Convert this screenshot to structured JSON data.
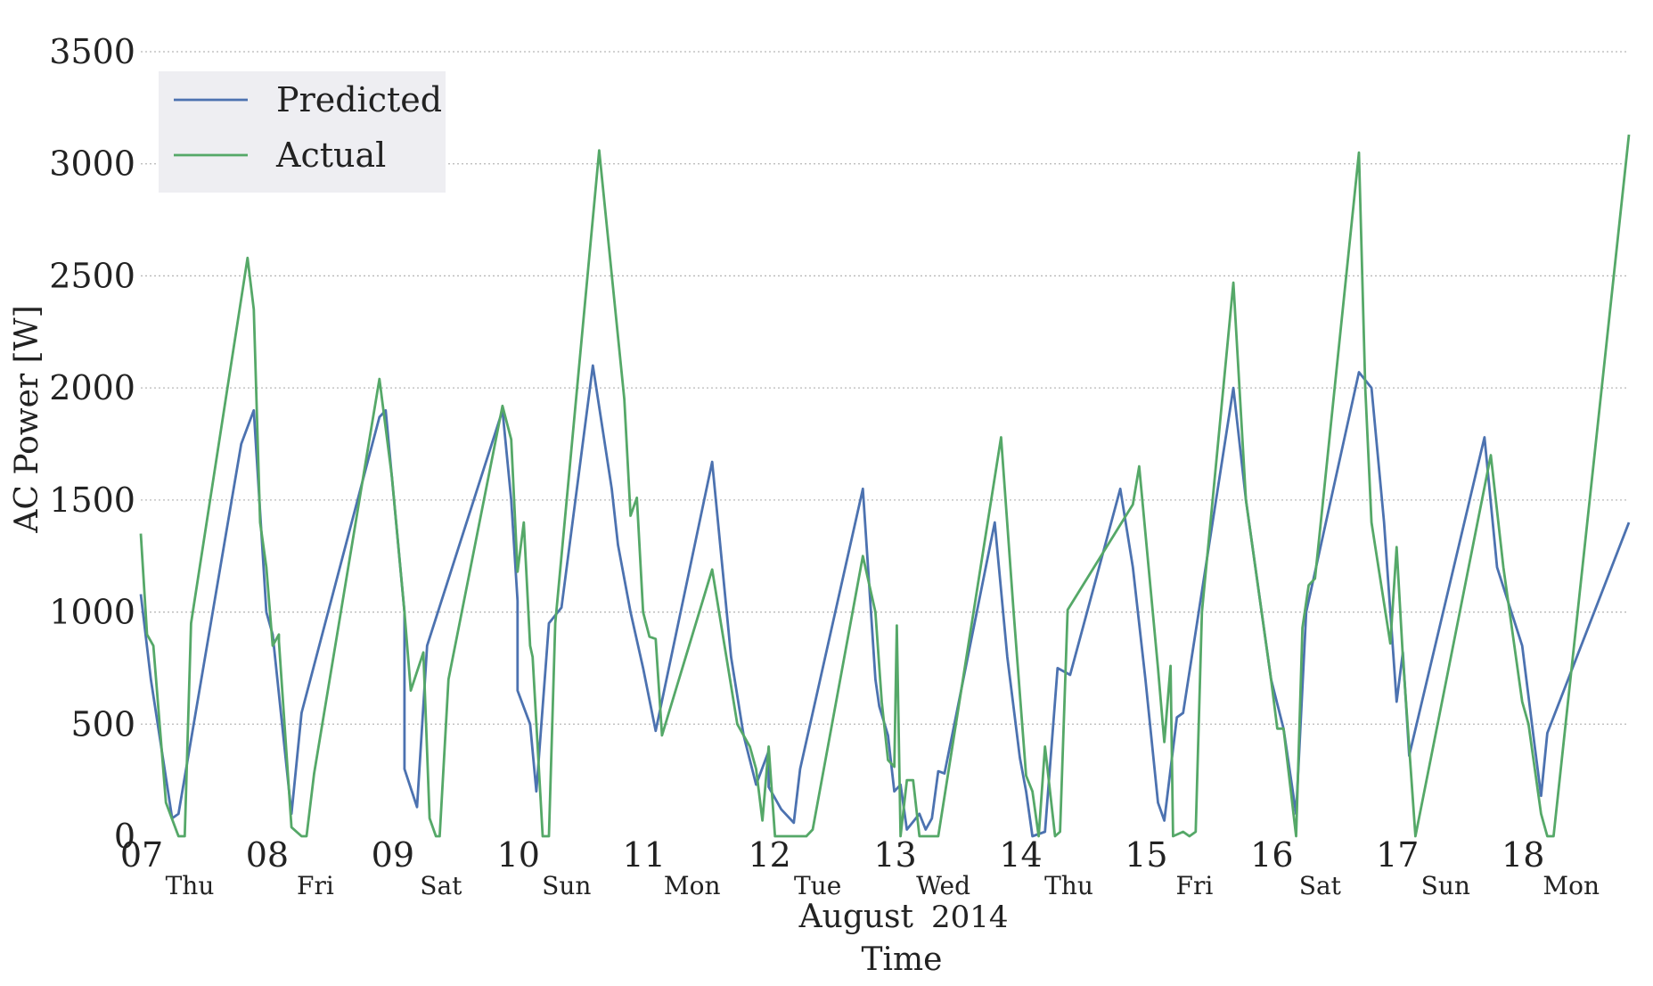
{
  "colors": {
    "predicted": "#4C72B0",
    "actual": "#55A868",
    "legend_bg": "#EEEEF2",
    "grid": "#B8B8B8"
  },
  "chart_data": {
    "type": "line",
    "ylabel": "AC Power [W]",
    "xlabel": "Time",
    "xlabel_month": "August",
    "xlabel_year": "2014",
    "ylim": [
      0,
      3500
    ],
    "yticks": [
      0,
      500,
      1000,
      1500,
      2000,
      2500,
      3000,
      3500
    ],
    "xlim": [
      7.0,
      18.85
    ],
    "day_ticks": [
      {
        "x": 7,
        "date": "07",
        "weekday": "Thu"
      },
      {
        "x": 8,
        "date": "08",
        "weekday": "Fri"
      },
      {
        "x": 9,
        "date": "09",
        "weekday": "Sat"
      },
      {
        "x": 10,
        "date": "10",
        "weekday": "Sun"
      },
      {
        "x": 11,
        "date": "11",
        "weekday": "Mon"
      },
      {
        "x": 12,
        "date": "12",
        "weekday": "Tue"
      },
      {
        "x": 13,
        "date": "13",
        "weekday": "Wed"
      },
      {
        "x": 14,
        "date": "14",
        "weekday": "Thu"
      },
      {
        "x": 15,
        "date": "15",
        "weekday": "Fri"
      },
      {
        "x": 16,
        "date": "16",
        "weekday": "Sat"
      },
      {
        "x": 17,
        "date": "17",
        "weekday": "Sun"
      },
      {
        "x": 18,
        "date": "18",
        "weekday": "Mon"
      }
    ],
    "grid": "horizontal dotted",
    "legend_position": "top-left",
    "series": [
      {
        "name": "Predicted",
        "color": "#4C72B0",
        "points": [
          [
            7.0,
            1080
          ],
          [
            7.08,
            700
          ],
          [
            7.25,
            80
          ],
          [
            7.3,
            100
          ],
          [
            7.8,
            1750
          ],
          [
            7.9,
            1900
          ],
          [
            8.0,
            1000
          ],
          [
            8.05,
            900
          ],
          [
            8.2,
            100
          ],
          [
            8.28,
            550
          ],
          [
            8.9,
            1870
          ],
          [
            8.95,
            1900
          ],
          [
            9.1,
            1000
          ],
          [
            9.1,
            300
          ],
          [
            9.2,
            130
          ],
          [
            9.28,
            850
          ],
          [
            9.88,
            1900
          ],
          [
            9.95,
            1500
          ],
          [
            10.0,
            1050
          ],
          [
            10.0,
            650
          ],
          [
            10.1,
            500
          ],
          [
            10.15,
            200
          ],
          [
            10.25,
            950
          ],
          [
            10.35,
            1020
          ],
          [
            10.6,
            2100
          ],
          [
            10.75,
            1550
          ],
          [
            10.8,
            1300
          ],
          [
            10.9,
            1000
          ],
          [
            11.0,
            750
          ],
          [
            11.1,
            470
          ],
          [
            11.55,
            1670
          ],
          [
            11.7,
            800
          ],
          [
            11.8,
            450
          ],
          [
            11.9,
            230
          ],
          [
            12.0,
            380
          ],
          [
            12.0,
            220
          ],
          [
            12.1,
            120
          ],
          [
            12.2,
            60
          ],
          [
            12.25,
            300
          ],
          [
            12.75,
            1550
          ],
          [
            12.85,
            700
          ],
          [
            12.88,
            580
          ],
          [
            12.95,
            450
          ],
          [
            13.0,
            200
          ],
          [
            13.05,
            230
          ],
          [
            13.1,
            30
          ],
          [
            13.2,
            100
          ],
          [
            13.25,
            30
          ],
          [
            13.3,
            80
          ],
          [
            13.35,
            290
          ],
          [
            13.4,
            280
          ],
          [
            13.8,
            1400
          ],
          [
            13.9,
            800
          ],
          [
            14.0,
            350
          ],
          [
            14.05,
            200
          ],
          [
            14.1,
            0
          ],
          [
            14.2,
            20
          ],
          [
            14.3,
            750
          ],
          [
            14.4,
            720
          ],
          [
            14.8,
            1550
          ],
          [
            14.9,
            1200
          ],
          [
            15.0,
            700
          ],
          [
            15.1,
            150
          ],
          [
            15.15,
            70
          ],
          [
            15.25,
            530
          ],
          [
            15.3,
            550
          ],
          [
            15.7,
            2000
          ],
          [
            15.8,
            1500
          ],
          [
            16.0,
            700
          ],
          [
            16.1,
            480
          ],
          [
            16.2,
            100
          ],
          [
            16.28,
            1000
          ],
          [
            16.7,
            2070
          ],
          [
            16.8,
            2000
          ],
          [
            16.9,
            1400
          ],
          [
            17.0,
            600
          ],
          [
            17.05,
            820
          ],
          [
            17.1,
            360
          ],
          [
            17.7,
            1780
          ],
          [
            17.8,
            1200
          ],
          [
            18.0,
            850
          ],
          [
            18.1,
            400
          ],
          [
            18.15,
            180
          ],
          [
            18.2,
            460
          ],
          [
            18.85,
            1400
          ]
        ]
      },
      {
        "name": "Actual",
        "color": "#55A868",
        "points": [
          [
            7.0,
            1350
          ],
          [
            7.05,
            900
          ],
          [
            7.1,
            850
          ],
          [
            7.2,
            150
          ],
          [
            7.3,
            0
          ],
          [
            7.35,
            0
          ],
          [
            7.4,
            950
          ],
          [
            7.85,
            2580
          ],
          [
            7.9,
            2350
          ],
          [
            7.95,
            1400
          ],
          [
            8.0,
            1200
          ],
          [
            8.05,
            850
          ],
          [
            8.08,
            880
          ],
          [
            8.1,
            900
          ],
          [
            8.1,
            870
          ],
          [
            8.2,
            40
          ],
          [
            8.28,
            0
          ],
          [
            8.32,
            0
          ],
          [
            8.38,
            280
          ],
          [
            8.9,
            2040
          ],
          [
            9.0,
            1600
          ],
          [
            9.1,
            1000
          ],
          [
            9.15,
            650
          ],
          [
            9.25,
            820
          ],
          [
            9.3,
            80
          ],
          [
            9.35,
            0
          ],
          [
            9.38,
            0
          ],
          [
            9.45,
            700
          ],
          [
            9.88,
            1920
          ],
          [
            9.95,
            1770
          ],
          [
            10.0,
            1180
          ],
          [
            10.05,
            1400
          ],
          [
            10.1,
            850
          ],
          [
            10.12,
            800
          ],
          [
            10.2,
            0
          ],
          [
            10.25,
            0
          ],
          [
            10.3,
            950
          ],
          [
            10.65,
            3060
          ],
          [
            10.85,
            1950
          ],
          [
            10.9,
            1430
          ],
          [
            10.95,
            1510
          ],
          [
            11.0,
            1000
          ],
          [
            11.05,
            890
          ],
          [
            11.1,
            880
          ],
          [
            11.15,
            450
          ],
          [
            11.55,
            1190
          ],
          [
            11.75,
            500
          ],
          [
            11.85,
            400
          ],
          [
            11.9,
            300
          ],
          [
            11.95,
            70
          ],
          [
            12.0,
            400
          ],
          [
            12.05,
            0
          ],
          [
            12.1,
            0
          ],
          [
            12.3,
            0
          ],
          [
            12.35,
            30
          ],
          [
            12.75,
            1250
          ],
          [
            12.85,
            1000
          ],
          [
            12.9,
            600
          ],
          [
            12.95,
            340
          ],
          [
            13.0,
            310
          ],
          [
            13.02,
            940
          ],
          [
            13.05,
            0
          ],
          [
            13.1,
            250
          ],
          [
            13.15,
            250
          ],
          [
            13.2,
            0
          ],
          [
            13.25,
            0
          ],
          [
            13.35,
            0
          ],
          [
            13.85,
            1780
          ],
          [
            13.95,
            1000
          ],
          [
            14.05,
            270
          ],
          [
            14.1,
            200
          ],
          [
            14.15,
            0
          ],
          [
            14.2,
            400
          ],
          [
            14.28,
            0
          ],
          [
            14.32,
            20
          ],
          [
            14.38,
            1010
          ],
          [
            14.9,
            1480
          ],
          [
            14.95,
            1650
          ],
          [
            15.1,
            750
          ],
          [
            15.15,
            420
          ],
          [
            15.2,
            760
          ],
          [
            15.22,
            0
          ],
          [
            15.3,
            20
          ],
          [
            15.35,
            0
          ],
          [
            15.4,
            20
          ],
          [
            15.45,
            1000
          ],
          [
            15.7,
            2470
          ],
          [
            15.8,
            1500
          ],
          [
            16.0,
            700
          ],
          [
            16.05,
            480
          ],
          [
            16.1,
            480
          ],
          [
            16.2,
            0
          ],
          [
            16.25,
            930
          ],
          [
            16.3,
            1120
          ],
          [
            16.35,
            1150
          ],
          [
            16.7,
            3050
          ],
          [
            16.75,
            2000
          ],
          [
            16.8,
            1400
          ],
          [
            16.95,
            860
          ],
          [
            17.0,
            1290
          ],
          [
            17.05,
            800
          ],
          [
            17.15,
            0
          ],
          [
            17.75,
            1700
          ],
          [
            17.85,
            1200
          ],
          [
            18.0,
            600
          ],
          [
            18.05,
            500
          ],
          [
            18.15,
            100
          ],
          [
            18.2,
            0
          ],
          [
            18.25,
            0
          ],
          [
            18.85,
            3130
          ]
        ]
      }
    ]
  }
}
